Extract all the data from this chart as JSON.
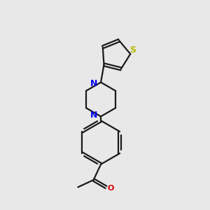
{
  "bg_color": "#e8e8e8",
  "bond_color": "#1a1a1a",
  "N_color": "#0000ee",
  "S_color": "#b8b800",
  "O_color": "#dd0000",
  "line_width": 1.6,
  "fig_size": [
    3.0,
    3.0
  ],
  "dpi": 100,
  "xlim": [
    0,
    10
  ],
  "ylim": [
    0,
    10
  ]
}
